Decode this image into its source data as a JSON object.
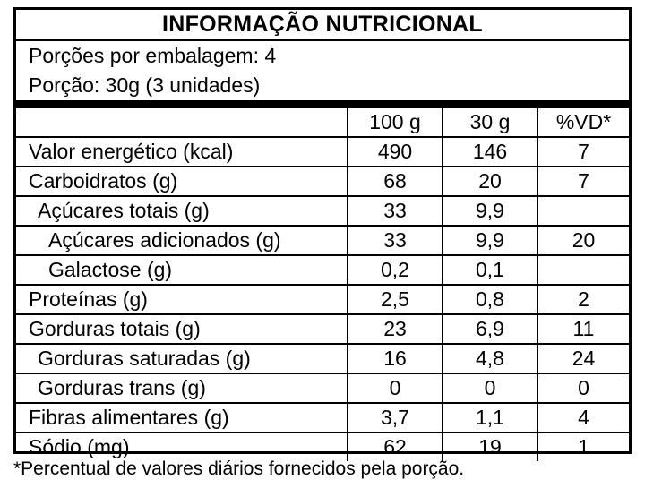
{
  "title": "INFORMAÇÃO NUTRICIONAL",
  "servings_per_package": "Porções por embalagem: 4",
  "serving_size": "Porção: 30g (3 unidades)",
  "columns": [
    "",
    "100 g",
    "30 g",
    "%VD*"
  ],
  "rows": [
    {
      "name": "Valor energético (kcal)",
      "indent": 0,
      "per100": "490",
      "per_serving": "146",
      "vd": "7"
    },
    {
      "name": "Carboidratos (g)",
      "indent": 0,
      "per100": "68",
      "per_serving": "20",
      "vd": "7"
    },
    {
      "name": "Açúcares totais (g)",
      "indent": 1,
      "per100": "33",
      "per_serving": "9,9",
      "vd": ""
    },
    {
      "name": "Açúcares adicionados (g)",
      "indent": 2,
      "per100": "33",
      "per_serving": "9,9",
      "vd": "20"
    },
    {
      "name": "Galactose (g)",
      "indent": 2,
      "per100": "0,2",
      "per_serving": "0,1",
      "vd": ""
    },
    {
      "name": "Proteínas (g)",
      "indent": 0,
      "per100": "2,5",
      "per_serving": "0,8",
      "vd": "2"
    },
    {
      "name": "Gorduras totais (g)",
      "indent": 0,
      "per100": "23",
      "per_serving": "6,9",
      "vd": "11"
    },
    {
      "name": "Gorduras saturadas (g)",
      "indent": 1,
      "per100": "16",
      "per_serving": "4,8",
      "vd": "24"
    },
    {
      "name": "Gorduras trans (g)",
      "indent": 1,
      "per100": "0",
      "per_serving": "0",
      "vd": "0"
    },
    {
      "name": "Fibras alimentares (g)",
      "indent": 0,
      "per100": "3,7",
      "per_serving": "1,1",
      "vd": "4"
    },
    {
      "name": "Sódio (mg)",
      "indent": 0,
      "per100": "62",
      "per_serving": "19",
      "vd": "1"
    }
  ],
  "footnote": "*Percentual de valores diários fornecidos pela porção."
}
